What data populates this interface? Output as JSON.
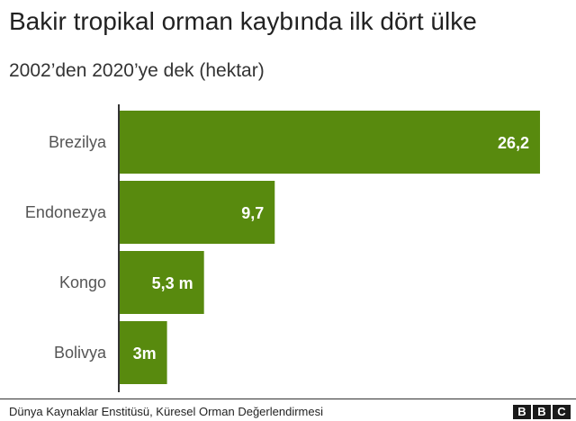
{
  "chart_data": {
    "type": "bar",
    "orientation": "horizontal",
    "title": "Bakir tropikal orman kaybında ilk dört ülke",
    "subtitle": "2002’den 2020’ye dek (hektar)",
    "categories": [
      "Brezilya",
      "Endonezya",
      "Kongo",
      "Bolivya"
    ],
    "values": [
      26.2,
      9.7,
      5.3,
      3.0
    ],
    "data_labels": [
      "26,2",
      "9,7",
      "5,3 m",
      "3m"
    ],
    "xlim": [
      0,
      26.2
    ],
    "grid": false,
    "legend": "none",
    "bar_color": "#588a0e",
    "label_color": "#ffffff",
    "category_color": "#555555"
  },
  "footer": {
    "source": "Dünya Kaynaklar Enstitüsü, Küresel Orman Değerlendirmesi",
    "logo_letters": [
      "B",
      "B",
      "C"
    ]
  }
}
